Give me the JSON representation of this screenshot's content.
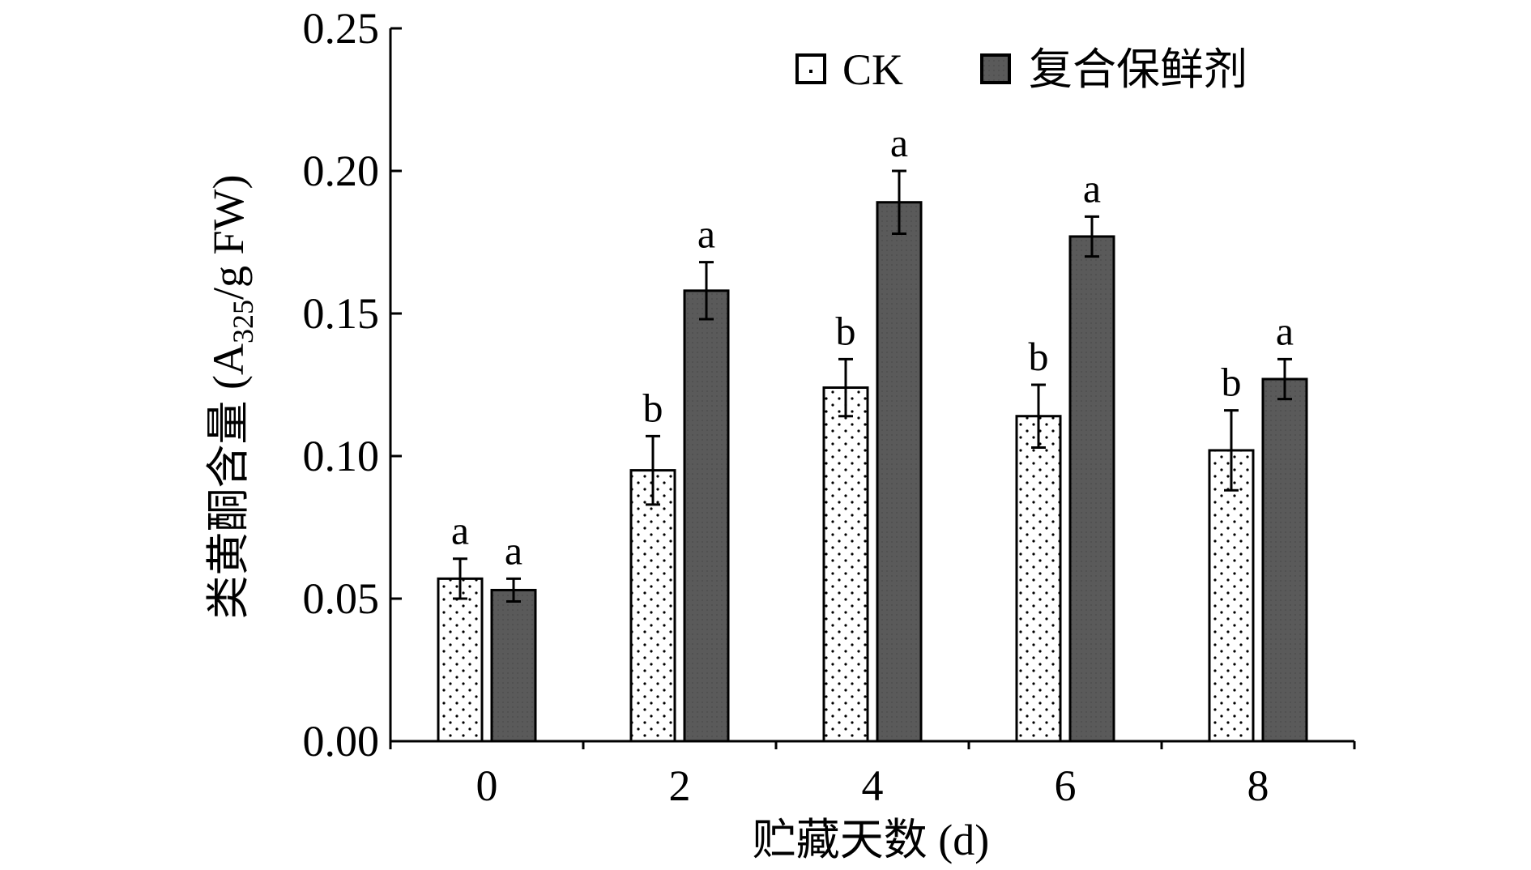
{
  "chart_data": {
    "type": "bar",
    "categories": [
      "0",
      "2",
      "4",
      "6",
      "8"
    ],
    "series": [
      {
        "name": "CK",
        "values": [
          0.057,
          0.095,
          0.124,
          0.114,
          0.102
        ],
        "errors": [
          0.007,
          0.012,
          0.01,
          0.011,
          0.014
        ],
        "significance": [
          "a",
          "b",
          "b",
          "b",
          "b"
        ],
        "fill": "dotted-white"
      },
      {
        "name": "复合保鲜剂",
        "values": [
          0.053,
          0.158,
          0.189,
          0.177,
          0.127
        ],
        "errors": [
          0.004,
          0.01,
          0.011,
          0.007,
          0.007
        ],
        "significance": [
          "a",
          "a",
          "a",
          "a",
          "a"
        ],
        "fill": "dark-gray"
      }
    ],
    "xlabel": "贮藏天数 (d)",
    "ylabel": {
      "prefix": "类黄酮含量 (A",
      "subscript": "325",
      "suffix": "/g FW)"
    },
    "ylim": [
      0,
      0.25
    ],
    "yticks": [
      "0.00",
      "0.05",
      "0.10",
      "0.15",
      "0.20",
      "0.25"
    ],
    "legend_position": "top-right",
    "grid": false,
    "colors": {
      "ck_fill": "#ffffff",
      "ck_dots": "#000000",
      "treatment_fill": "#5a5a5a",
      "axis": "#000000"
    }
  }
}
